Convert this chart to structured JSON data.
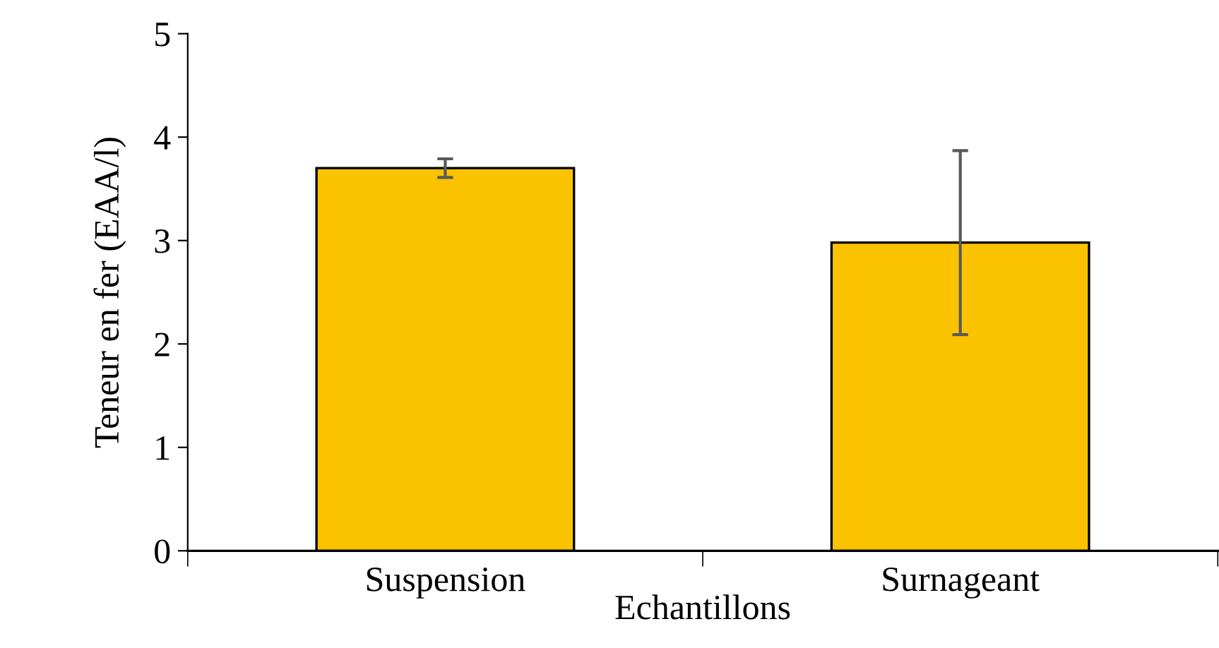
{
  "chart_data": {
    "type": "bar",
    "xlabel": "Echantillons",
    "ylabel": "Teneur en fer (EAA/l)",
    "categories": [
      "Suspension",
      "Surnageant"
    ],
    "values": [
      3.7,
      2.98
    ],
    "errors": [
      0.09,
      0.89
    ],
    "color": "#fbc200",
    "ylim": [
      0,
      5
    ],
    "yticks": [
      0,
      1,
      2,
      3,
      4,
      5
    ],
    "grid": false,
    "legend": false
  }
}
